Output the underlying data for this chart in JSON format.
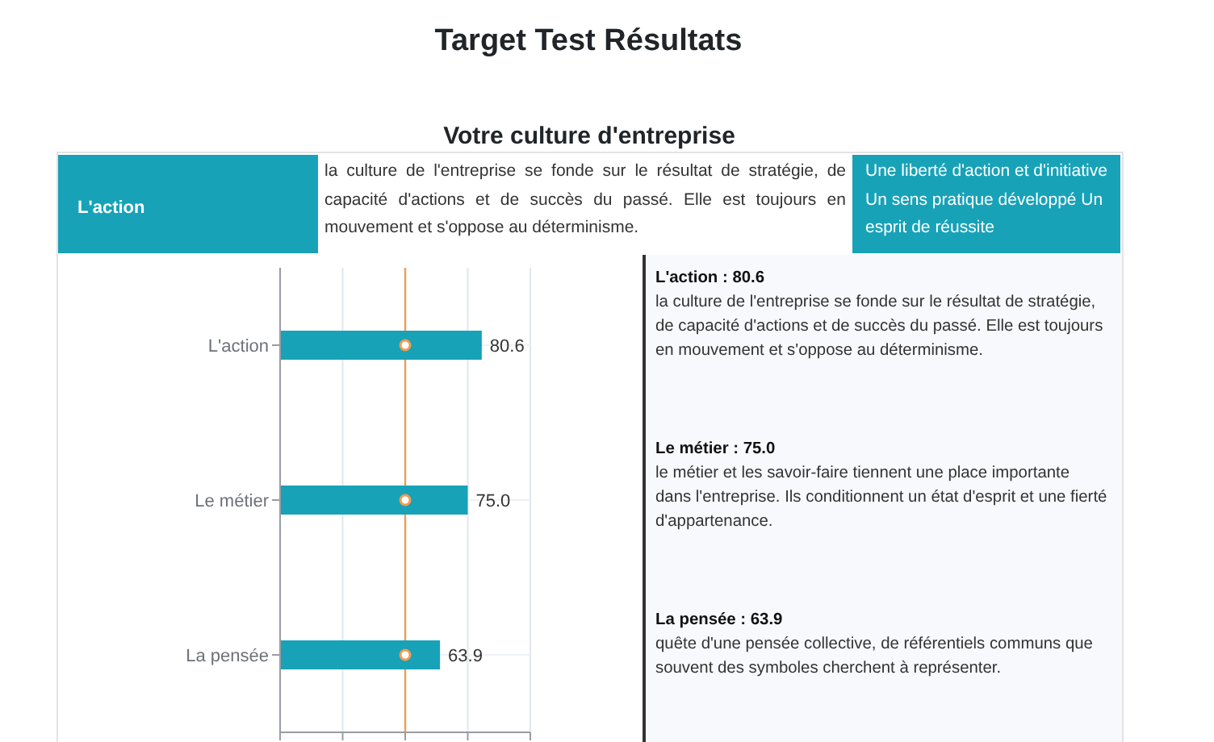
{
  "chart_data": {
    "type": "bar",
    "orientation": "horizontal",
    "title": "Target Test Résultats",
    "subtitle": "Votre culture d'entreprise",
    "categories": [
      "L'action",
      "Le métier",
      "La pensée"
    ],
    "series": [
      {
        "color": "#17a2b8",
        "values": [
          80.6,
          75.0,
          63.9
        ],
        "value_labels": [
          "80.6",
          "75.0",
          "63.9"
        ]
      },
      {
        "type": "scatter",
        "color": "#f39c52",
        "values": [
          50,
          50,
          50
        ],
        "marker": "circle"
      }
    ],
    "xlim": [
      0,
      100
    ],
    "xticks": [
      0,
      25,
      50,
      75,
      100
    ],
    "tick_labels": "y",
    "grid": true,
    "ref_lines": [
      {
        "axis": "x",
        "value": 50,
        "color": "#f39c52"
      }
    ],
    "annotations": [
      "L'action",
      "la culture de l'entreprise se fonde sur le résultat de stratégie, de capacité d'actions et de succès du passé. Elle est toujours en mouvement et s'oppose au déterminisme.",
      "Une liberté d'action et d'initiative Un sens pratique développé Un esprit de réussite",
      "L'action : 80.6",
      "la culture de l'entreprise se fonde sur le résultat de stratégie, de capacité d'actions et de succès du passé. Elle est toujours en mouvement et s'oppose au déterminisme.",
      "Le métier : 75.0",
      "le métier et les savoir-faire tiennent une place importante dans l'entreprise. Ils conditionnent un état d'esprit et une fierté d'appartenance.",
      "La pensée : 63.9",
      "quête d'une pensée collective, de référentiels communs que souvent des symboles cherchent à représenter."
    ]
  }
}
